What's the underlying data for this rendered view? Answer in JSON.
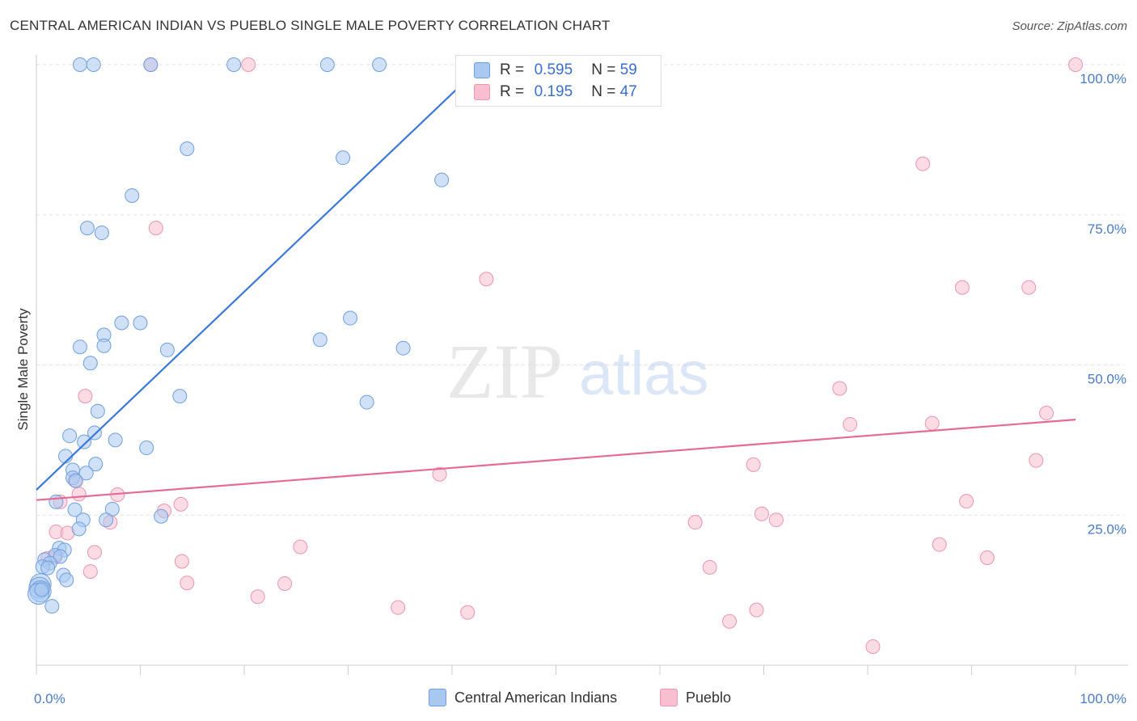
{
  "title": "CENTRAL AMERICAN INDIAN VS PUEBLO SINGLE MALE POVERTY CORRELATION CHART",
  "source": "Source: ZipAtlas.com",
  "watermark": {
    "zip": "ZIP",
    "atlas": "atlas"
  },
  "legend_top": {
    "rows": [
      {
        "r_label": "R =",
        "r_value": "0.595",
        "n_label": "N =",
        "n_value": "59"
      },
      {
        "r_label": "R =",
        "r_value": "0.195",
        "n_label": "N =",
        "n_value": "47"
      }
    ]
  },
  "legend_bottom": [
    "Central American Indians",
    "Pueblo"
  ],
  "colors": {
    "blue_fill": "#a9c8f0",
    "blue_stroke": "#6e9fe0",
    "blue_line": "#3a78d8",
    "pink_fill": "#f7bfd0",
    "pink_stroke": "#ee93b1",
    "pink_line": "#e56b97",
    "grid": "#e2e2e2",
    "tick_text": "#4a7bc8"
  },
  "chart_data": {
    "type": "scatter",
    "title": "CENTRAL AMERICAN INDIAN VS PUEBLO SINGLE MALE POVERTY CORRELATION CHART",
    "xlabel": "",
    "ylabel": "Single Male Poverty",
    "xlim": [
      0,
      100
    ],
    "ylim": [
      0,
      100
    ],
    "x_tick_labels": [
      "0.0%",
      "100.0%"
    ],
    "y_tick_labels": [
      "25.0%",
      "50.0%",
      "75.0%",
      "100.0%"
    ],
    "y_ticks": [
      25,
      50,
      75,
      100
    ],
    "grid": true,
    "legend_position": "top-center",
    "series": [
      {
        "name": "Central American Indians",
        "R": 0.595,
        "N": 59,
        "trend": {
          "x": [
            0,
            40.5
          ],
          "y": [
            29.2,
            96.0
          ]
        },
        "points": [
          [
            4.2,
            100
          ],
          [
            5.5,
            100
          ],
          [
            11,
            100
          ],
          [
            19,
            100
          ],
          [
            28,
            100
          ],
          [
            33,
            100
          ],
          [
            14.5,
            86
          ],
          [
            29.5,
            84.5
          ],
          [
            39,
            80.8
          ],
          [
            9.2,
            78.2
          ],
          [
            4.9,
            72.8
          ],
          [
            6.3,
            72
          ],
          [
            8.2,
            57
          ],
          [
            10,
            57
          ],
          [
            30.2,
            57.8
          ],
          [
            27.3,
            54.2
          ],
          [
            6.5,
            55
          ],
          [
            4.2,
            53
          ],
          [
            6.5,
            53.2
          ],
          [
            12.6,
            52.5
          ],
          [
            35.3,
            52.8
          ],
          [
            5.2,
            50.3
          ],
          [
            13.8,
            44.8
          ],
          [
            31.8,
            43.8
          ],
          [
            5.9,
            42.3
          ],
          [
            3.2,
            38.2
          ],
          [
            5.6,
            38.7
          ],
          [
            7.6,
            37.5
          ],
          [
            4.6,
            37.2
          ],
          [
            10.6,
            36.2
          ],
          [
            2.8,
            34.8
          ],
          [
            5.7,
            33.5
          ],
          [
            3.5,
            32.5
          ],
          [
            4.8,
            32
          ],
          [
            3.5,
            31.2
          ],
          [
            3.8,
            30.7
          ],
          [
            1.9,
            27.2
          ],
          [
            7.3,
            26
          ],
          [
            3.7,
            25.9
          ],
          [
            12,
            24.8
          ],
          [
            4.5,
            24.2
          ],
          [
            6.7,
            24.2
          ],
          [
            4.1,
            22.7
          ],
          [
            2.2,
            19.5
          ],
          [
            2.7,
            19.2
          ],
          [
            1.8,
            18.3
          ],
          [
            2.3,
            18.1
          ],
          [
            0.8,
            17.6
          ],
          [
            1.3,
            17.0
          ],
          [
            0.6,
            16.4
          ],
          [
            1.1,
            16.2
          ],
          [
            2.6,
            15.0
          ],
          [
            2.9,
            14.2
          ],
          [
            0.4,
            13.5
          ],
          [
            0.3,
            12.9
          ],
          [
            0.4,
            12.3
          ],
          [
            0.2,
            11.9
          ],
          [
            1.5,
            9.8
          ],
          [
            0.5,
            12.6
          ]
        ]
      },
      {
        "name": "Pueblo",
        "R": 0.195,
        "N": 47,
        "trend": {
          "x": [
            0,
            100
          ],
          "y": [
            27.5,
            40.9
          ]
        },
        "points": [
          [
            11,
            100
          ],
          [
            20.4,
            100
          ],
          [
            100,
            100
          ],
          [
            85.3,
            83.5
          ],
          [
            11.5,
            72.8
          ],
          [
            43.3,
            64.3
          ],
          [
            89.1,
            62.9
          ],
          [
            95.5,
            62.9
          ],
          [
            4.7,
            44.8
          ],
          [
            77.3,
            46.1
          ],
          [
            97.2,
            42
          ],
          [
            78.3,
            40.1
          ],
          [
            86.2,
            40.3
          ],
          [
            96.2,
            34.1
          ],
          [
            69,
            33.4
          ],
          [
            38.8,
            31.8
          ],
          [
            2.3,
            27.2
          ],
          [
            7.8,
            28.4
          ],
          [
            4.1,
            28.5
          ],
          [
            13.9,
            26.8
          ],
          [
            12.3,
            25.7
          ],
          [
            69.8,
            25.2
          ],
          [
            71.2,
            24.2
          ],
          [
            63.4,
            23.8
          ],
          [
            7.1,
            23.8
          ],
          [
            89.5,
            27.3
          ],
          [
            86.9,
            20.1
          ],
          [
            91.5,
            17.9
          ],
          [
            1.9,
            22.2
          ],
          [
            3,
            22
          ],
          [
            25.4,
            19.7
          ],
          [
            5.6,
            18.8
          ],
          [
            1.1,
            17.8
          ],
          [
            1.8,
            18.0
          ],
          [
            14,
            17.3
          ],
          [
            64.8,
            16.3
          ],
          [
            5.2,
            15.6
          ],
          [
            14.5,
            13.7
          ],
          [
            23.9,
            13.6
          ],
          [
            21.3,
            11.4
          ],
          [
            34.8,
            9.6
          ],
          [
            69.3,
            9.2
          ],
          [
            41.5,
            8.8
          ],
          [
            66.7,
            7.3
          ],
          [
            80.5,
            3.1
          ],
          [
            0.6,
            12.9
          ],
          [
            3.7,
            30.8
          ]
        ]
      }
    ]
  }
}
